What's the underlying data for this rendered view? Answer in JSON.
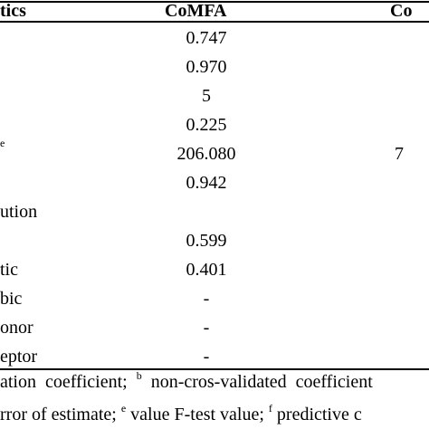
{
  "header": {
    "param": "tics",
    "comfa": "CoMFA",
    "comsia": "Co"
  },
  "rows": [
    {
      "param": "",
      "sup": "",
      "comfa": "0.747",
      "comsia": ""
    },
    {
      "param": "",
      "sup": "",
      "comfa": "0.970",
      "comsia": ""
    },
    {
      "param": "",
      "sup": "",
      "comfa": "5",
      "comsia": ""
    },
    {
      "param": "",
      "sup": "",
      "comfa": "0.225",
      "comsia": ""
    },
    {
      "param": "",
      "sup": "e",
      "comfa": "206.080",
      "comsia": "7"
    },
    {
      "param": "",
      "sup": "",
      "comfa": "0.942",
      "comsia": ""
    },
    {
      "param": "ution",
      "sup": "",
      "comfa": "",
      "comsia": ""
    },
    {
      "param": "",
      "sup": "",
      "comfa": "0.599",
      "comsia": ""
    },
    {
      "param": "tic",
      "sup": "",
      "comfa": "0.401",
      "comsia": ""
    },
    {
      "param": "bic",
      "sup": "",
      "comfa": "-",
      "comsia": ""
    },
    {
      "param": "onor",
      "sup": "",
      "comfa": "-",
      "comsia": ""
    },
    {
      "param": "eptor",
      "sup": "",
      "comfa": "-",
      "comsia": ""
    }
  ],
  "footnotes": {
    "line1_a": "ation coefficient; ",
    "line1_sup_b": "b",
    "line1_b": " non-cros-validated coefficient",
    "line2_a": "rror of estimate; ",
    "line2_sup_e": "e",
    "line2_b": " value F-test value; ",
    "line2_sup_f": "f",
    "line2_c": " predictive c"
  }
}
